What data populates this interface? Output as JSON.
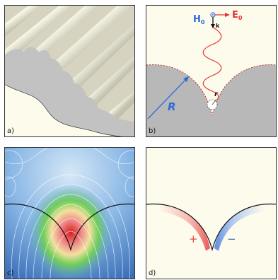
{
  "panels": {
    "a": {
      "label": "a)"
    },
    "b": {
      "label": "b)",
      "h0": {
        "main": "H",
        "sub": "0"
      },
      "e0": {
        "main": "E",
        "sub": "0"
      },
      "k": "k",
      "big_r": "R",
      "small_r": "r"
    },
    "c": {
      "label": "c)"
    },
    "d": {
      "label": "d)",
      "plus": "+",
      "minus": "−"
    }
  },
  "colors": {
    "background": "#fdfbec",
    "metal": "#b8b8b8",
    "field_blue": "#2f6bd6",
    "wave_red": "#e8322e",
    "charge_red": "#f08a8a",
    "charge_blue": "#8ab0f0"
  }
}
